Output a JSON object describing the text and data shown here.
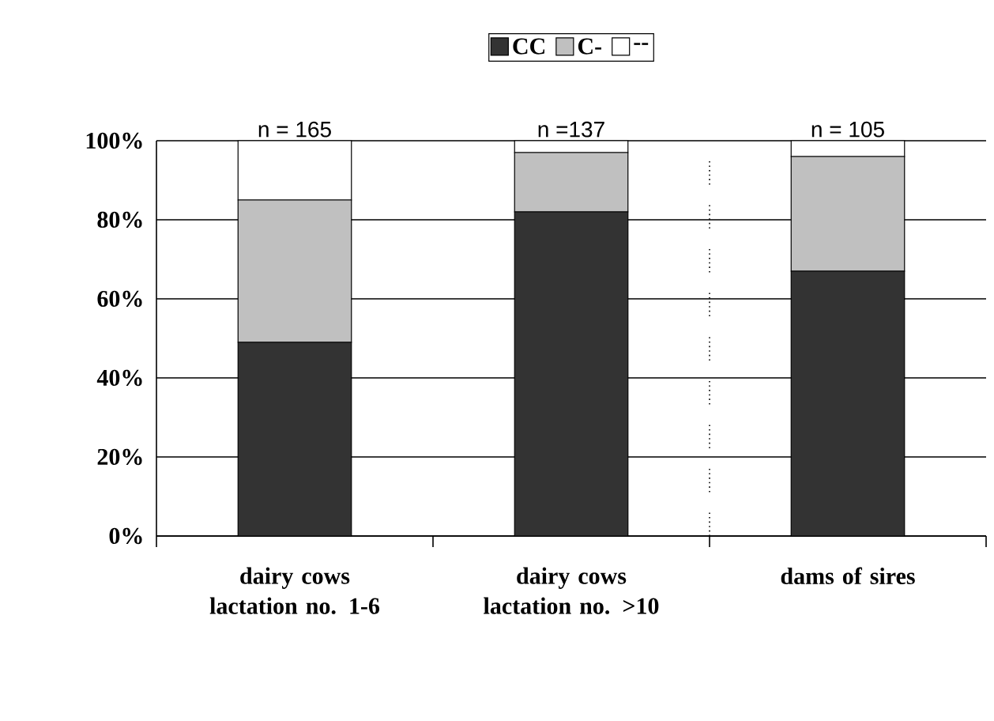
{
  "chart_data": {
    "type": "bar",
    "stacked": true,
    "categories": [
      "dairy cows lactation no. 1-6",
      "dairy cows lactation no. >10",
      "dams of sires"
    ],
    "series": [
      {
        "name": "CC",
        "color": "#333333",
        "values": [
          49,
          82,
          67
        ]
      },
      {
        "name": "C-",
        "color": "#c0c0c0",
        "values": [
          36,
          15,
          29
        ]
      },
      {
        "name": "--",
        "color": "#ffffff",
        "values": [
          15,
          3,
          4
        ]
      }
    ],
    "ylim": [
      0,
      100
    ],
    "yticks": [
      {
        "value": 0,
        "label": "0%"
      },
      {
        "value": 20,
        "label": "20%"
      },
      {
        "value": 40,
        "label": "40%"
      },
      {
        "value": 60,
        "label": "60%"
      },
      {
        "value": 80,
        "label": "80%"
      },
      {
        "value": 100,
        "label": "100%"
      }
    ],
    "grid": "y",
    "legend": "top",
    "annotations": [
      {
        "text": "n = 165",
        "x": "dairy cows lactation no. 1-6",
        "y": 100
      },
      {
        "text": "n =137",
        "x": "dairy cows lactation no. >10",
        "y": 100
      },
      {
        "text": "n = 105",
        "x": "dams of sires",
        "y": 100
      }
    ]
  }
}
